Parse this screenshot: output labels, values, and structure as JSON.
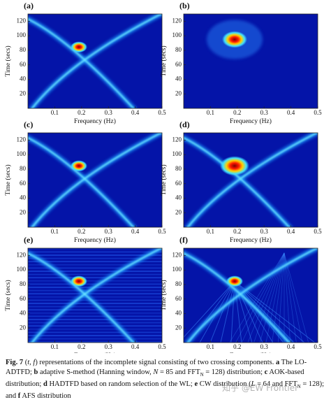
{
  "panels": [
    {
      "label": "(a)",
      "xlabel": "Frequency (Hz)",
      "ylabel": "Time (secs)",
      "xticks": [
        "0.1",
        "0.2",
        "0.3",
        "0.4",
        "0.5"
      ],
      "yticks": [
        "20",
        "40",
        "60",
        "80",
        "100",
        "120"
      ]
    },
    {
      "label": "(b)",
      "xlabel": "Frequency (Hz)",
      "ylabel": "Time (secs)",
      "xticks": [
        "0.1",
        "0.2",
        "0.3",
        "0.4",
        "0.5"
      ],
      "yticks": [
        "20",
        "40",
        "60",
        "80",
        "100",
        "120"
      ]
    },
    {
      "label": "(c)",
      "xlabel": "Frequency (Hz)",
      "ylabel": "Time (secs)",
      "xticks": [
        "0.1",
        "0.2",
        "0.3",
        "0.4",
        "0.5"
      ],
      "yticks": [
        "20",
        "40",
        "60",
        "80",
        "100",
        "120"
      ]
    },
    {
      "label": "(d)",
      "xlabel": "Frequency (Hz)",
      "ylabel": "Time (secs)",
      "xticks": [
        "0.1",
        "0.2",
        "0.3",
        "0.4",
        "0.5"
      ],
      "yticks": [
        "20",
        "40",
        "60",
        "80",
        "100",
        "120"
      ]
    },
    {
      "label": "(e)",
      "xlabel": "Frequency (Hz)",
      "ylabel": "Time (secs)",
      "xticks": [
        "0.1",
        "0.2",
        "0.3",
        "0.4",
        "0.5"
      ],
      "yticks": [
        "20",
        "40",
        "60",
        "80",
        "100",
        "120"
      ]
    },
    {
      "label": "(f)",
      "xlabel": "Frequency (Hz)",
      "ylabel": "Time (secs)",
      "xticks": [
        "0.1",
        "0.2",
        "0.3",
        "0.4",
        "0.5"
      ],
      "yticks": [
        "20",
        "40",
        "60",
        "80",
        "100",
        "120"
      ]
    }
  ],
  "caption": [
    {
      "text": "Fig. 7",
      "style": "bold"
    },
    {
      "text": "  (",
      "style": "normal"
    },
    {
      "text": "t, f",
      "style": "italic"
    },
    {
      "text": ") representations of the incomplete signal consisting of two crossing components. ",
      "style": "normal"
    },
    {
      "text": "a",
      "style": "bold"
    },
    {
      "text": " The LO-ADTFD; ",
      "style": "normal"
    },
    {
      "text": "b",
      "style": "bold"
    },
    {
      "text": " adaptive S-method (Hanning window, ",
      "style": "normal"
    },
    {
      "text": "N",
      "style": "italic"
    },
    {
      "text": " = 85 and FFT",
      "style": "normal"
    },
    {
      "text": "N",
      "style": "sub"
    },
    {
      "text": " = 128) distribution; ",
      "style": "normal"
    },
    {
      "text": "c",
      "style": "bold"
    },
    {
      "text": " AOK-based distribution; ",
      "style": "normal"
    },
    {
      "text": "d",
      "style": "bold"
    },
    {
      "text": " HADTFD based on random selection of the WL; ",
      "style": "normal"
    },
    {
      "text": "e",
      "style": "bold"
    },
    {
      "text": " CW distribution (",
      "style": "normal"
    },
    {
      "text": "L",
      "style": "italic"
    },
    {
      "text": " = 64 and FFT",
      "style": "normal"
    },
    {
      "text": "N",
      "style": "sub"
    },
    {
      "text": " = 128); and ",
      "style": "normal"
    },
    {
      "text": "f",
      "style": "bold"
    },
    {
      "text": " AFS distribution",
      "style": "normal"
    }
  ],
  "watermark": "知乎 @EW Frontier"
}
